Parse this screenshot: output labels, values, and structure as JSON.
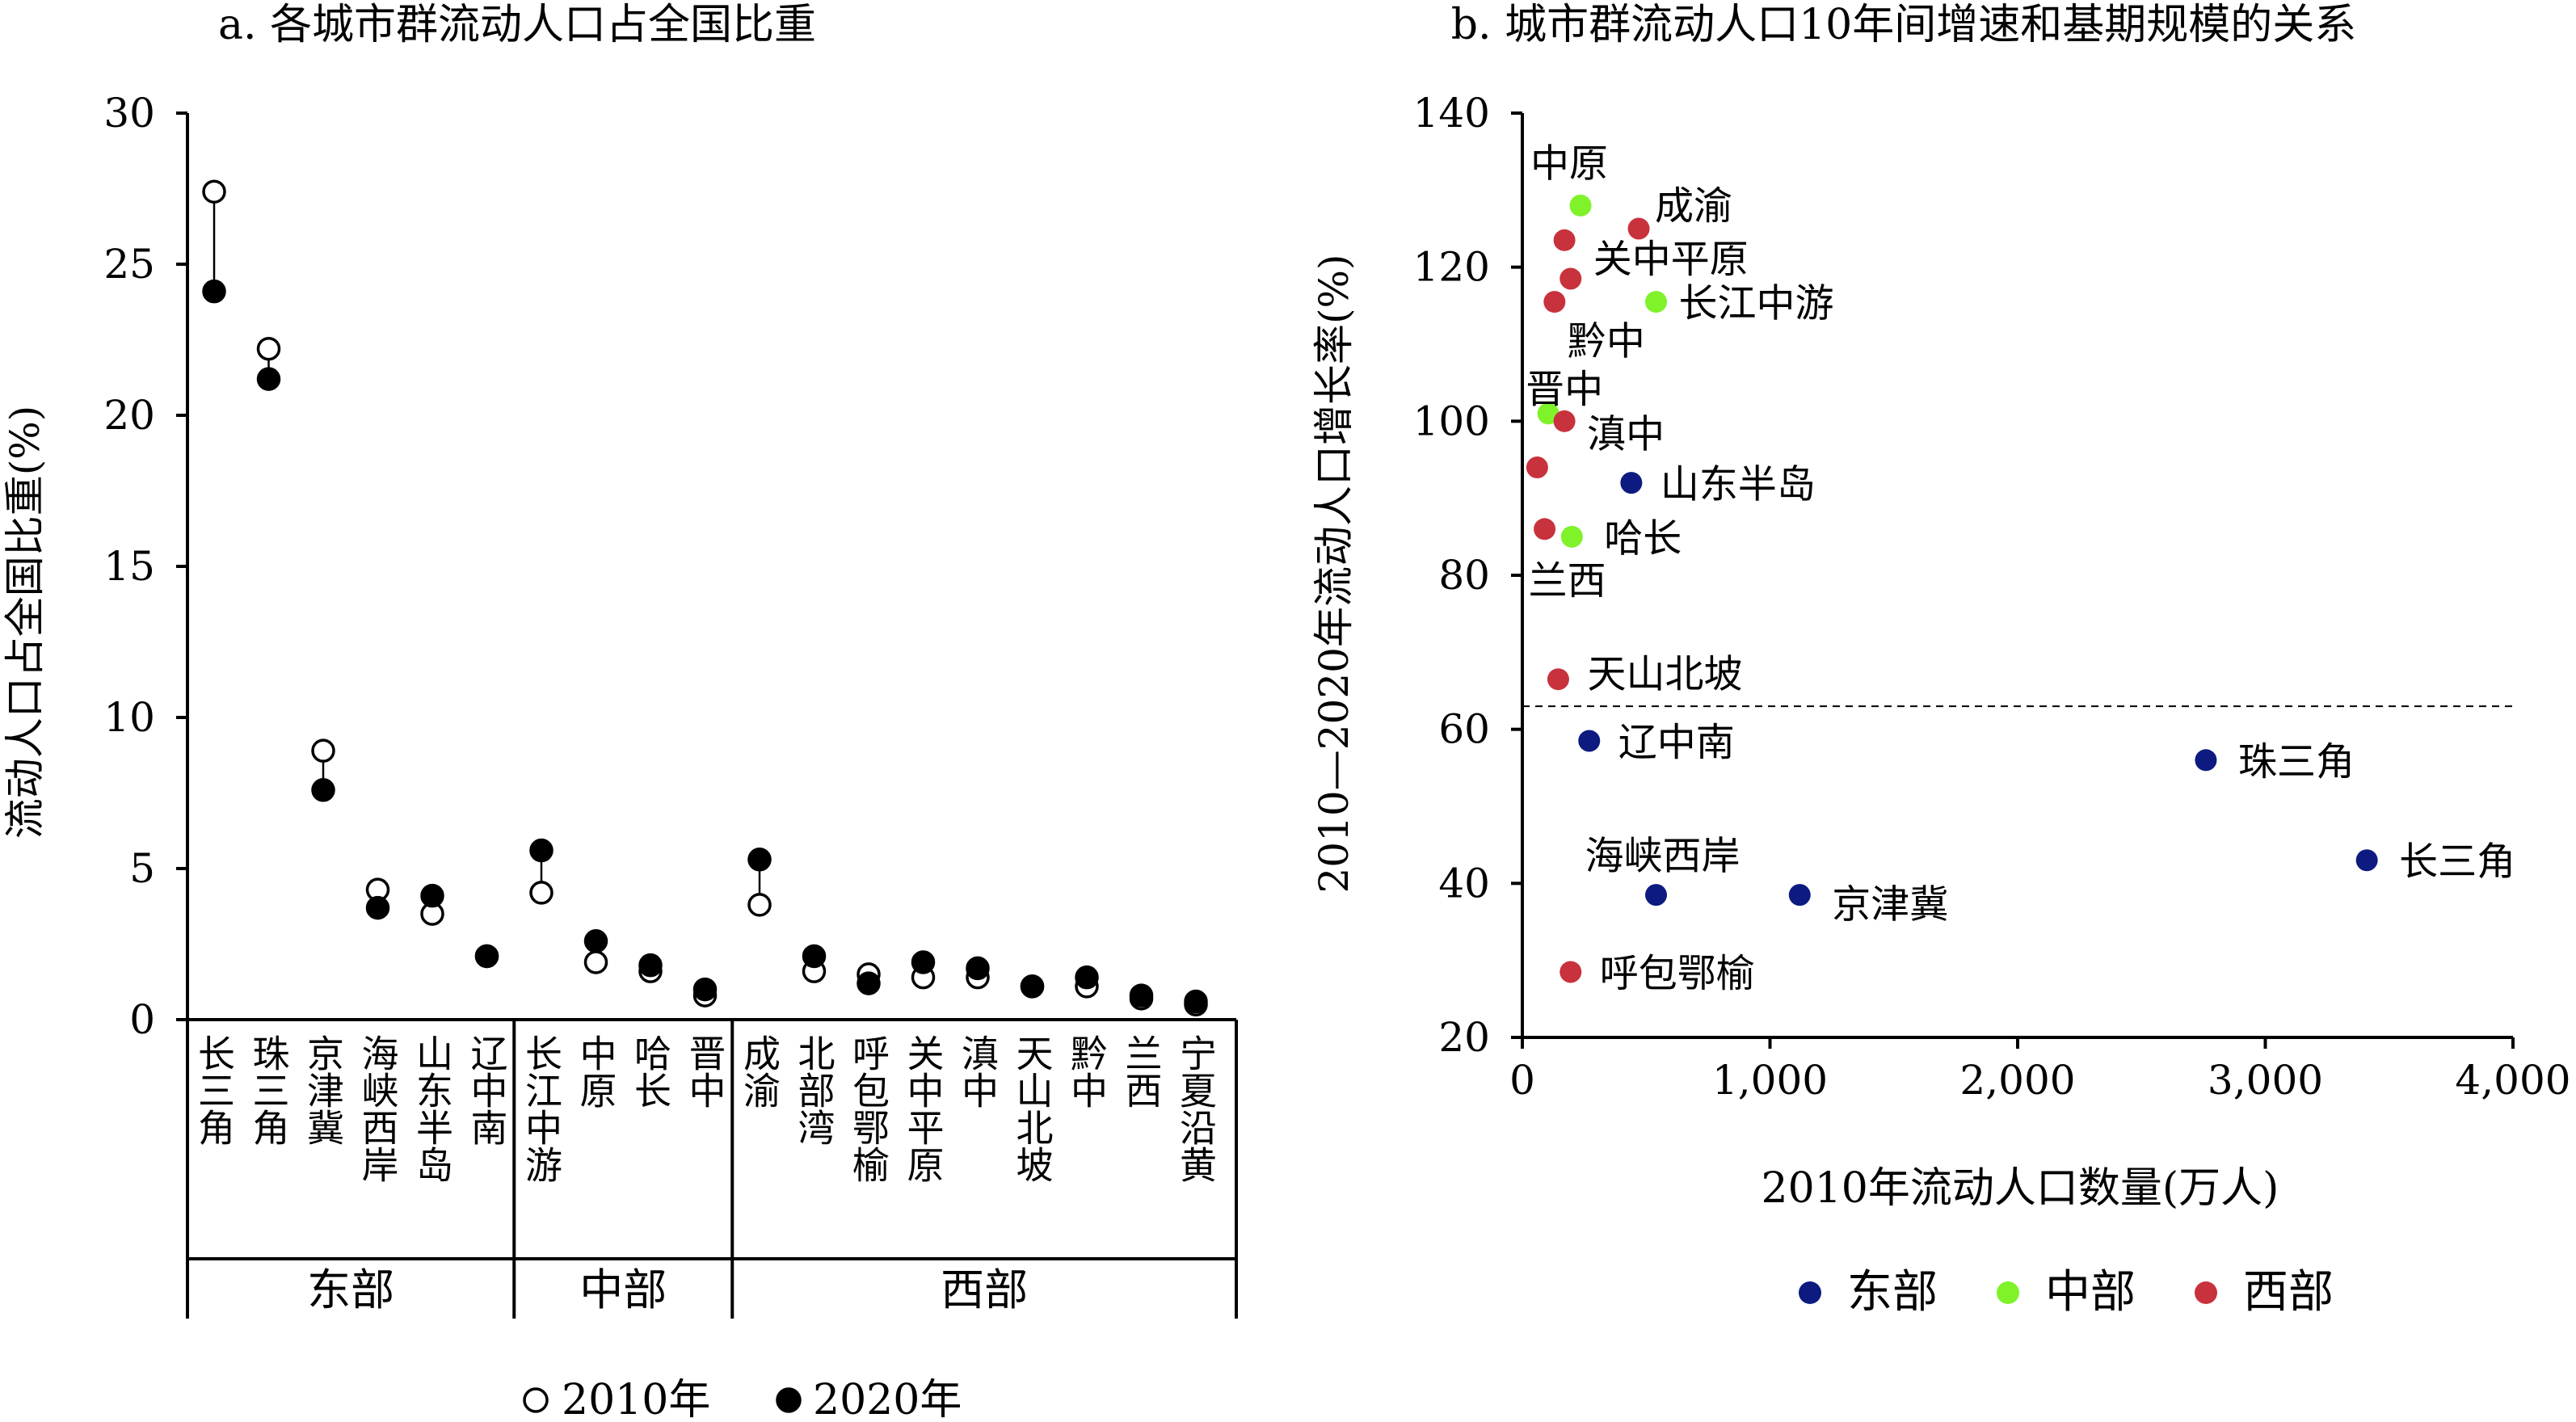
{
  "chart_data": [
    {
      "type": "scatter",
      "title": "a. 各城市群流动人口占全国比重",
      "ylabel": "流动人口占全国比重(%)",
      "ylim": [
        0,
        30
      ],
      "yticks": [
        0,
        5,
        10,
        15,
        20,
        25,
        30
      ],
      "categories": [
        "长三角",
        "珠三角",
        "京津冀",
        "海峡西岸",
        "山东半岛",
        "辽中南",
        "长江中游",
        "中原",
        "哈长",
        "晋中",
        "成渝",
        "北部湾",
        "呼包鄂榆",
        "关中平原",
        "滇中",
        "天山北坡",
        "黔中",
        "兰西",
        "宁夏沿黄"
      ],
      "groups": [
        {
          "name": "东部",
          "count": 6
        },
        {
          "name": "中部",
          "count": 4
        },
        {
          "name": "西部",
          "count": 9
        }
      ],
      "series": [
        {
          "name": "2010年",
          "marker": "open-circle",
          "values": [
            27.4,
            22.2,
            8.9,
            4.3,
            3.5,
            2.1,
            4.2,
            1.9,
            1.6,
            0.8,
            3.8,
            1.6,
            1.5,
            1.4,
            1.4,
            1.1,
            1.1,
            0.7,
            0.5
          ]
        },
        {
          "name": "2020年",
          "marker": "filled-circle",
          "values": [
            24.1,
            21.2,
            7.6,
            3.7,
            4.1,
            2.1,
            5.6,
            2.6,
            1.8,
            1.0,
            5.3,
            2.1,
            1.2,
            1.9,
            1.7,
            1.1,
            1.4,
            0.8,
            0.6
          ]
        }
      ],
      "legend_position": "bottom"
    },
    {
      "type": "scatter",
      "title": "b. 城市群流动人口10年间增速和基期规模的关系",
      "xlabel": "2010年流动人口数量(万人)",
      "ylabel": "2010—2020年流动人口增长率(%)",
      "xlim": [
        0,
        4000
      ],
      "ylim": [
        20,
        140
      ],
      "xticks": [
        "0",
        "1,000",
        "2,000",
        "3,000",
        "4,000"
      ],
      "yticks": [
        20,
        40,
        60,
        80,
        100,
        120,
        140
      ],
      "reference_line_y": 63,
      "series": [
        {
          "name": "东部",
          "color": "#0d1a80",
          "points": [
            {
              "label": "长三角",
              "x": 3410,
              "y": 43
            },
            {
              "label": "珠三角",
              "x": 2760,
              "y": 56
            },
            {
              "label": "京津冀",
              "x": 1120,
              "y": 38.5
            },
            {
              "label": "海峡西岸",
              "x": 540,
              "y": 38.5
            },
            {
              "label": "山东半岛",
              "x": 440,
              "y": 92
            },
            {
              "label": "辽中南",
              "x": 270,
              "y": 58.5
            }
          ]
        },
        {
          "name": "中部",
          "color": "#7ff22a",
          "points": [
            {
              "label": "长江中游",
              "x": 540,
              "y": 115.5
            },
            {
              "label": "中原",
              "x": 235,
              "y": 128
            },
            {
              "label": "哈长",
              "x": 200,
              "y": 85
            },
            {
              "label": "晋中",
              "x": 105,
              "y": 101
            }
          ]
        },
        {
          "name": "西部",
          "color": "#c8323c",
          "points": [
            {
              "label": "成渝",
              "x": 470,
              "y": 125
            },
            {
              "label": "关中平原",
              "x": 195,
              "y": 118.5
            },
            {
              "label": "",
              "x": 170,
              "y": 123.5
            },
            {
              "label": "黔中",
              "x": 130,
              "y": 115.5
            },
            {
              "label": "滇中",
              "x": 170,
              "y": 100
            },
            {
              "label": "",
              "x": 60,
              "y": 94
            },
            {
              "label": "兰西",
              "x": 90,
              "y": 86
            },
            {
              "label": "天山北坡",
              "x": 145,
              "y": 66.5
            },
            {
              "label": "呼包鄂榆",
              "x": 195,
              "y": 28.5
            }
          ]
        }
      ],
      "legend_position": "bottom"
    }
  ]
}
